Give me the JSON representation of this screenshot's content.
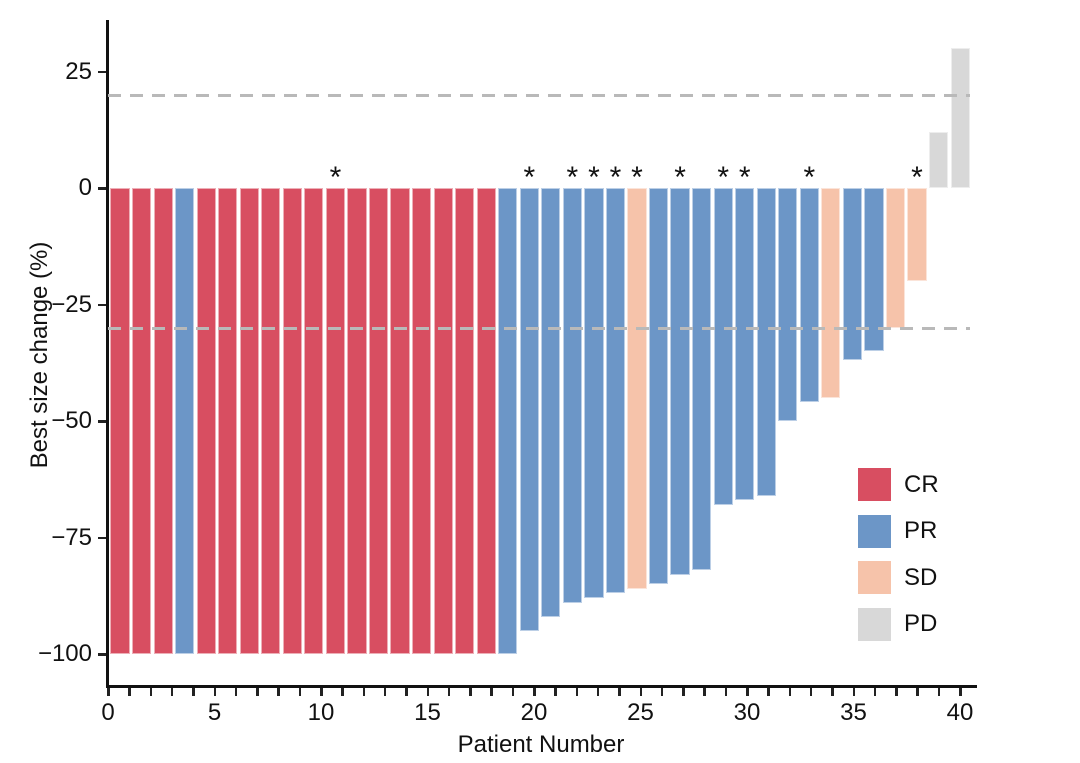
{
  "chart_data": {
    "type": "bar",
    "title": "",
    "xlabel": "Patient Number",
    "ylabel": "Best size change (%)",
    "x_ticks_labeled": [
      0,
      5,
      10,
      15,
      20,
      25,
      30,
      35,
      40
    ],
    "x_minor_tick_every": 1,
    "x_range": [
      0,
      40.7
    ],
    "y_ticks": [
      25,
      0,
      -25,
      -50,
      -75,
      -100
    ],
    "ylim": [
      -106,
      36
    ],
    "grid": "off",
    "legend_position": "right-inside",
    "threshold_lines": [
      20,
      -30
    ],
    "legend": [
      {
        "label": "CR",
        "color": "#D84E61"
      },
      {
        "label": "PR",
        "color": "#6C96C7"
      },
      {
        "label": "SD",
        "color": "#F6C3AA"
      },
      {
        "label": "PD",
        "color": "#D8D8D8"
      }
    ],
    "patients": [
      {
        "n": 1,
        "value": -100,
        "response": "CR",
        "asterisk": false
      },
      {
        "n": 2,
        "value": -100,
        "response": "CR",
        "asterisk": false
      },
      {
        "n": 3,
        "value": -100,
        "response": "CR",
        "asterisk": false
      },
      {
        "n": 4,
        "value": -100,
        "response": "PR",
        "asterisk": false
      },
      {
        "n": 5,
        "value": -100,
        "response": "CR",
        "asterisk": false
      },
      {
        "n": 6,
        "value": -100,
        "response": "CR",
        "asterisk": false
      },
      {
        "n": 7,
        "value": -100,
        "response": "CR",
        "asterisk": false
      },
      {
        "n": 8,
        "value": -100,
        "response": "CR",
        "asterisk": false
      },
      {
        "n": 9,
        "value": -100,
        "response": "CR",
        "asterisk": false
      },
      {
        "n": 10,
        "value": -100,
        "response": "CR",
        "asterisk": false
      },
      {
        "n": 11,
        "value": -100,
        "response": "CR",
        "asterisk": true
      },
      {
        "n": 12,
        "value": -100,
        "response": "CR",
        "asterisk": false
      },
      {
        "n": 13,
        "value": -100,
        "response": "CR",
        "asterisk": false
      },
      {
        "n": 14,
        "value": -100,
        "response": "CR",
        "asterisk": false
      },
      {
        "n": 15,
        "value": -100,
        "response": "CR",
        "asterisk": false
      },
      {
        "n": 16,
        "value": -100,
        "response": "CR",
        "asterisk": false
      },
      {
        "n": 17,
        "value": -100,
        "response": "CR",
        "asterisk": false
      },
      {
        "n": 18,
        "value": -100,
        "response": "CR",
        "asterisk": false
      },
      {
        "n": 19,
        "value": -100,
        "response": "PR",
        "asterisk": false
      },
      {
        "n": 20,
        "value": -95,
        "response": "PR",
        "asterisk": true
      },
      {
        "n": 21,
        "value": -92,
        "response": "PR",
        "asterisk": false
      },
      {
        "n": 22,
        "value": -89,
        "response": "PR",
        "asterisk": true
      },
      {
        "n": 23,
        "value": -88,
        "response": "PR",
        "asterisk": true
      },
      {
        "n": 24,
        "value": -87,
        "response": "PR",
        "asterisk": true
      },
      {
        "n": 25,
        "value": -86,
        "response": "SD",
        "asterisk": true
      },
      {
        "n": 26,
        "value": -85,
        "response": "PR",
        "asterisk": false
      },
      {
        "n": 27,
        "value": -83,
        "response": "PR",
        "asterisk": true
      },
      {
        "n": 28,
        "value": -82,
        "response": "PR",
        "asterisk": false
      },
      {
        "n": 29,
        "value": -68,
        "response": "PR",
        "asterisk": true
      },
      {
        "n": 30,
        "value": -67,
        "response": "PR",
        "asterisk": true
      },
      {
        "n": 31,
        "value": -66,
        "response": "PR",
        "asterisk": false
      },
      {
        "n": 32,
        "value": -50,
        "response": "PR",
        "asterisk": false
      },
      {
        "n": 33,
        "value": -46,
        "response": "PR",
        "asterisk": true
      },
      {
        "n": 34,
        "value": -45,
        "response": "SD",
        "asterisk": false
      },
      {
        "n": 35,
        "value": -37,
        "response": "PR",
        "asterisk": false
      },
      {
        "n": 36,
        "value": -35,
        "response": "PR",
        "asterisk": false
      },
      {
        "n": 37,
        "value": -30,
        "response": "SD",
        "asterisk": false
      },
      {
        "n": 38,
        "value": -20,
        "response": "SD",
        "asterisk": true
      },
      {
        "n": 39,
        "value": 12,
        "response": "PD",
        "asterisk": false
      },
      {
        "n": 40,
        "value": 30,
        "response": "PD",
        "asterisk": false
      }
    ]
  },
  "colors": {
    "CR": "#D84E61",
    "PR": "#6C96C7",
    "SD": "#F6C3AA",
    "PD": "#D8D8D8",
    "threshold_dash": "#B9B9B9",
    "axis": "#111111",
    "background": "#FFFFFF"
  }
}
